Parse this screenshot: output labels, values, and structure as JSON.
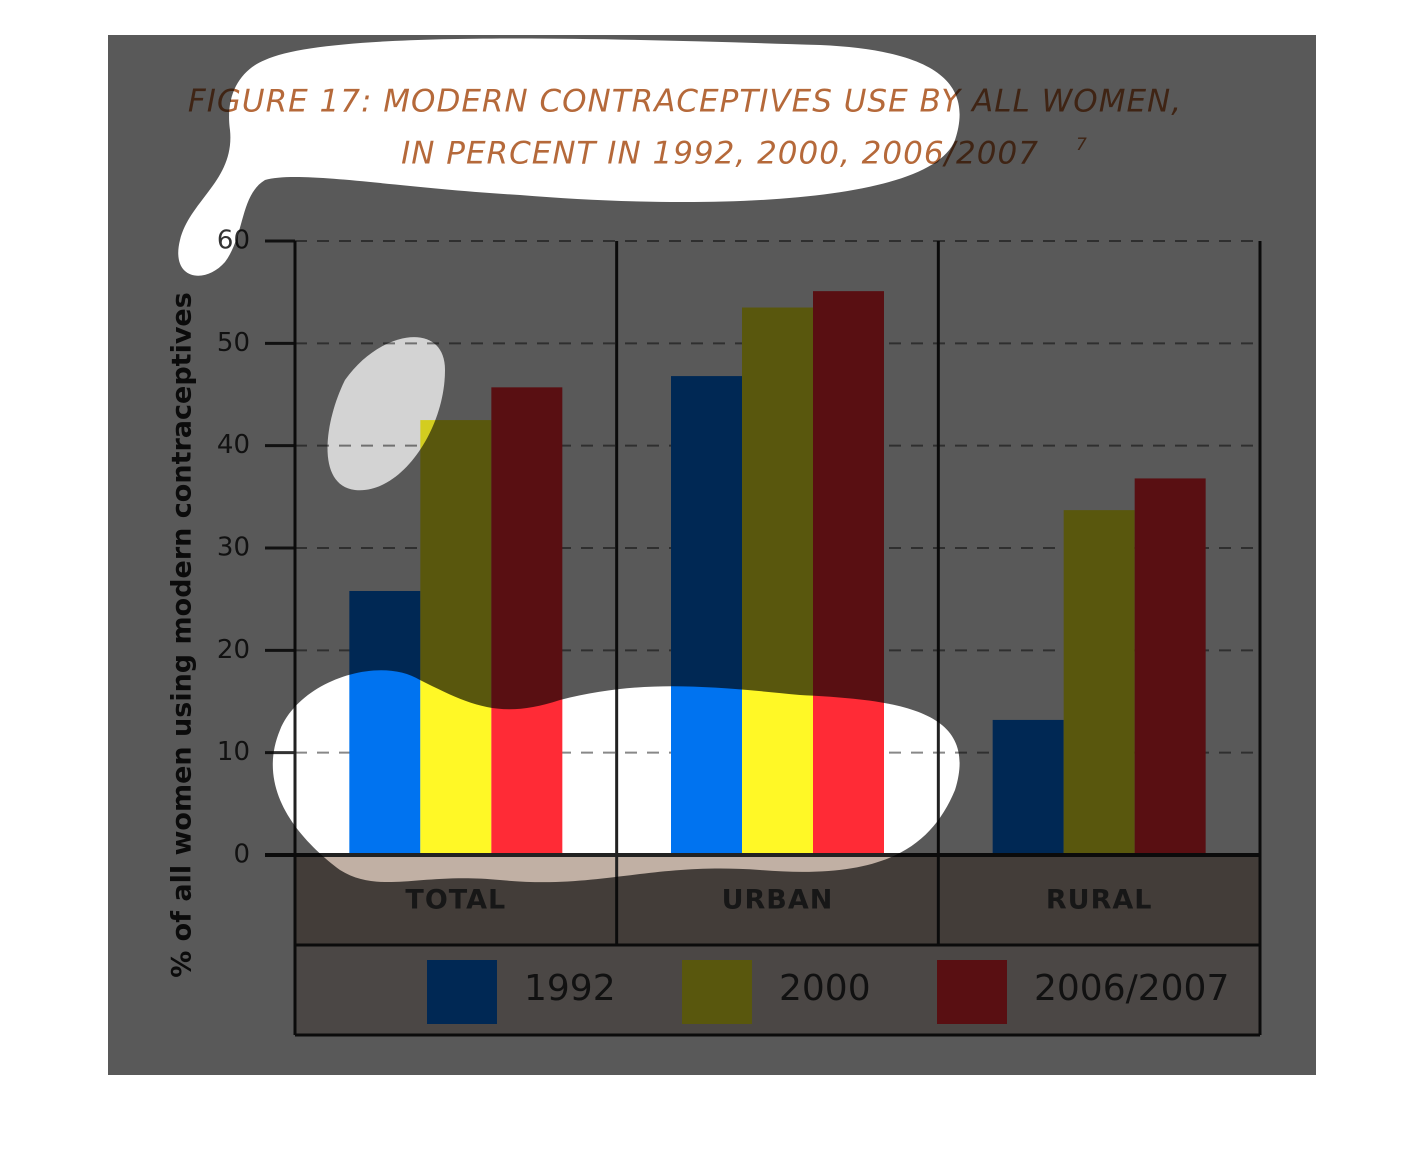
{
  "chart_data": {
    "type": "bar",
    "title": [
      "FIGURE 17: MODERN CONTRACEPTIVES USE BY ALL WOMEN,",
      "IN PERCENT IN 1992, 2000, 2006/2007"
    ],
    "title_note": "7",
    "y_label": "% of all women using modern contraceptives",
    "categories": [
      "TOTAL",
      "URBAN",
      "RURAL"
    ],
    "series": [
      {
        "name": "1992",
        "color": "#0073f0",
        "values": [
          25.8,
          46.8,
          13.2
        ]
      },
      {
        "name": "2000",
        "color": "#fff826",
        "values": [
          42.5,
          53.5,
          33.7
        ]
      },
      {
        "name": "2006/2007",
        "color": "#ff2b36",
        "values": [
          45.7,
          55.1,
          36.8
        ]
      }
    ],
    "ylim": [
      0,
      60
    ],
    "yticks": [
      0,
      10,
      20,
      30,
      40,
      50,
      60
    ],
    "grid": true,
    "legend": "bottom"
  }
}
